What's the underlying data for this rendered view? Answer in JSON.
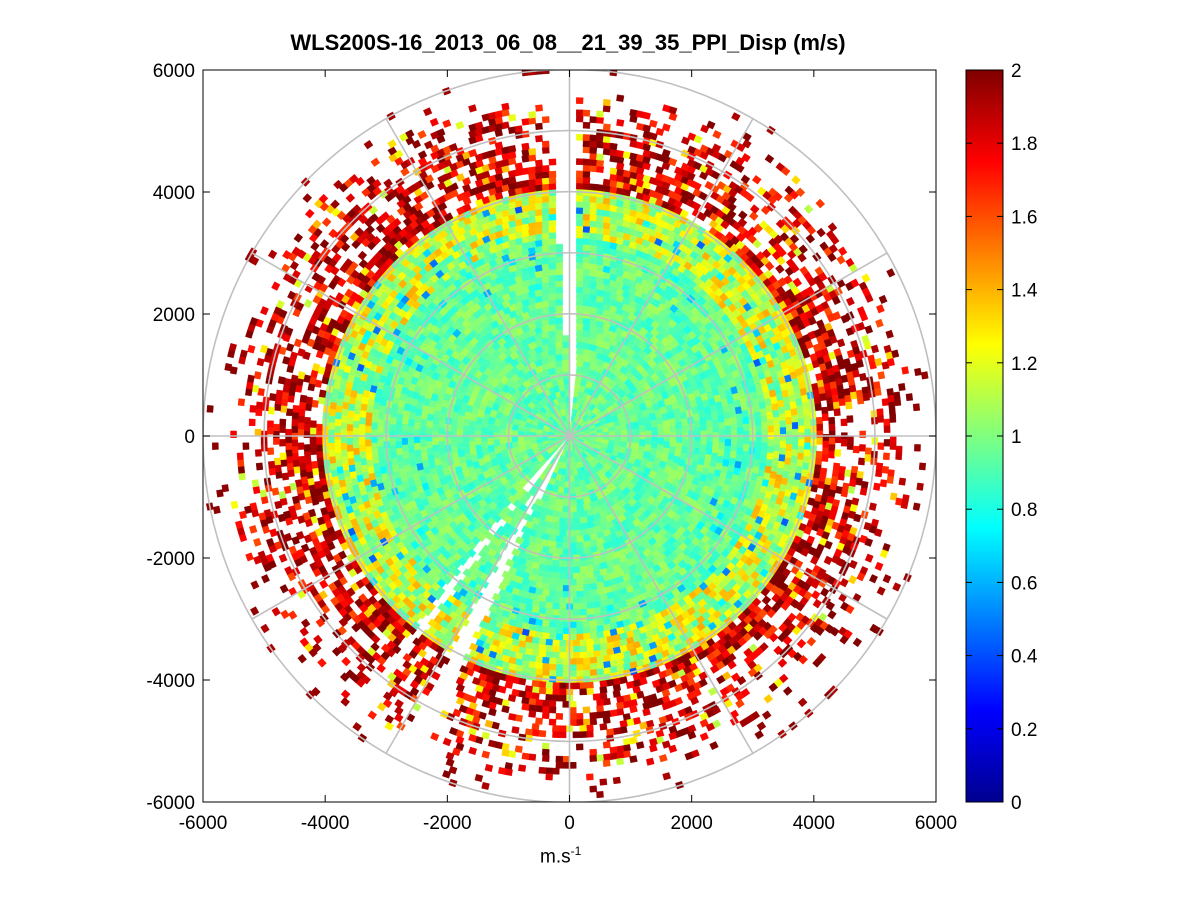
{
  "chart_data": {
    "type": "heatmap",
    "subtype": "polar-ppi",
    "title": "WLS200S-16_2013_06_08__21_39_35_PPI_Disp (m/s)",
    "xlabel_base": "m.s",
    "xlabel_exp": "-1",
    "ylabel": "",
    "xlim": [
      -6000,
      6000
    ],
    "ylim": [
      -6000,
      6000
    ],
    "x_ticks": [
      -6000,
      -4000,
      -2000,
      0,
      2000,
      4000,
      6000
    ],
    "y_ticks": [
      -6000,
      -4000,
      -2000,
      0,
      2000,
      4000,
      6000
    ],
    "x_tick_labels": [
      "-6000",
      "-4000",
      "-2000",
      "0",
      "2000",
      "4000",
      "6000"
    ],
    "y_tick_labels": [
      "-6000",
      "-4000",
      "-2000",
      "0",
      "2000",
      "4000",
      "6000"
    ],
    "colormap": "jet",
    "clim": [
      0,
      2
    ],
    "colorbar_ticks": [
      0,
      0.2,
      0.4,
      0.6,
      0.8,
      1,
      1.2,
      1.4,
      1.6,
      1.8,
      2
    ],
    "colorbar_tick_labels": [
      "0",
      "0.2",
      "0.4",
      "0.6",
      "0.8",
      "1",
      "1.2",
      "1.4",
      "1.6",
      "1.8",
      "2"
    ],
    "polar_grid_ranges": [
      1000,
      2000,
      3000,
      4000,
      5000,
      6000
    ],
    "polar_grid_angles_deg": [
      0,
      30,
      60,
      90,
      120,
      150,
      180,
      210,
      240,
      270,
      300,
      330
    ],
    "data_gaps_azimuth_deg": [
      [
        -4,
        0
      ],
      [
        204,
        208
      ],
      [
        216,
        218
      ]
    ],
    "data_profile": {
      "core_value": 0.95,
      "core_range_max": 3200,
      "mid_value": 1.15,
      "mid_range": [
        3200,
        4000
      ],
      "outer_value": 1.85,
      "outer_range": [
        4000,
        5600
      ],
      "sparse_range_max": 6000
    },
    "grid_color": "#c0c0c0"
  }
}
